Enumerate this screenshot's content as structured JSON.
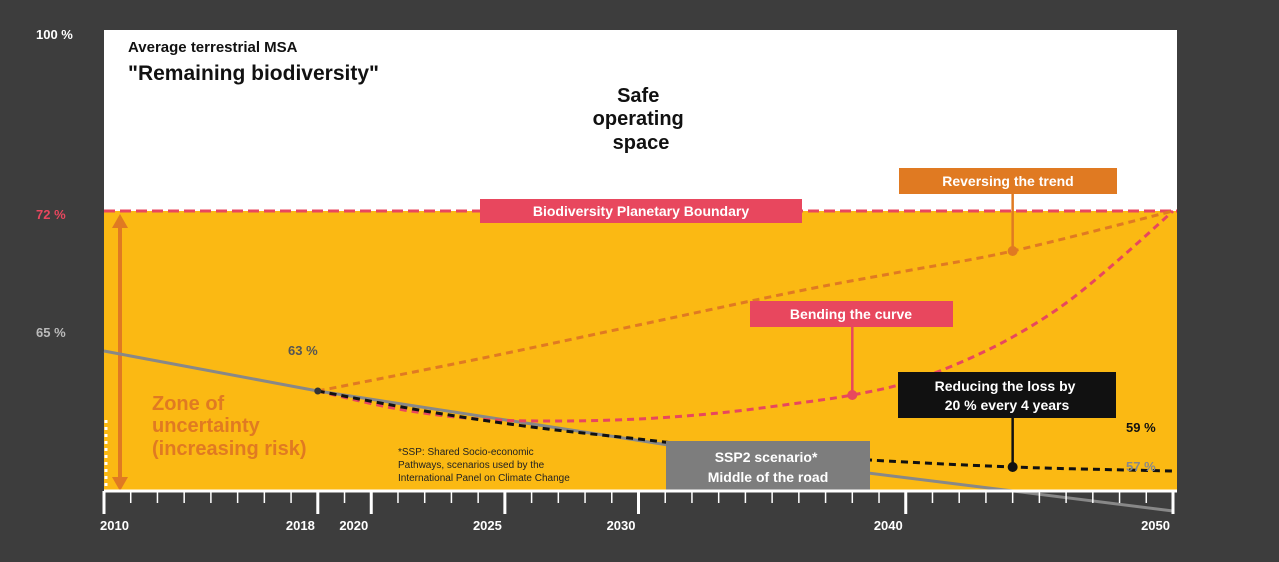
{
  "chart_data": {
    "type": "line",
    "title": "Average terrestrial MSA",
    "subtitle": "\"Remaining biodiversity\"",
    "xlim": [
      2010,
      2050
    ],
    "ylim": [
      58,
      100
    ],
    "x_ticks": [
      2010,
      2018,
      2020,
      2025,
      2030,
      2040,
      2050
    ],
    "y_labels": [
      {
        "value": 100,
        "label": "100 %"
      },
      {
        "value": 72,
        "label": "72 %"
      },
      {
        "value": 65,
        "label": "65 %"
      }
    ],
    "safe_space_label": [
      "Safe",
      "operating",
      "space"
    ],
    "boundary": {
      "value": 72,
      "label": "Biodiversity Planetary Boundary"
    },
    "uncertainty_zone": {
      "label": [
        "Zone of",
        "uncertainty",
        "(increasing risk)"
      ]
    },
    "footnote": [
      "*SSP: Shared Socio-economic",
      "Pathways, scenarios used by the",
      "International Panel on Climate Change"
    ],
    "series": [
      {
        "name": "SSP2 scenario* Middle of the road",
        "label_lines": [
          "SSP2 scenario*",
          "Middle of the road"
        ],
        "color": "#888888",
        "style": "solid",
        "points": [
          [
            2010,
            65
          ],
          [
            2018,
            63
          ],
          [
            2035,
            59.5
          ],
          [
            2050,
            57
          ]
        ],
        "marker_at": 2035,
        "end_label": "57 %"
      },
      {
        "name": "Reversing the trend",
        "label_lines": [
          "Reversing the trend"
        ],
        "color": "#e07a22",
        "style": "dashed",
        "points": [
          [
            2018,
            63
          ],
          [
            2024,
            64.6
          ],
          [
            2030,
            66.3
          ],
          [
            2036,
            68.0
          ],
          [
            2040,
            69.0
          ],
          [
            2044,
            70.0
          ],
          [
            2050,
            72
          ]
        ],
        "marker_at": 2044
      },
      {
        "name": "Bending the curve",
        "label_lines": [
          "Bending the curve"
        ],
        "color": "#e8475e",
        "style": "dashed",
        "points": [
          [
            2018,
            63
          ],
          [
            2021,
            62.1
          ],
          [
            2024,
            61.6
          ],
          [
            2027,
            61.5
          ],
          [
            2030,
            61.6
          ],
          [
            2033,
            61.9
          ],
          [
            2036,
            62.4
          ],
          [
            2038,
            62.8
          ],
          [
            2040,
            63.4
          ],
          [
            2042,
            64.4
          ],
          [
            2044,
            65.7
          ],
          [
            2046,
            67.4
          ],
          [
            2048,
            69.6
          ],
          [
            2050,
            72
          ]
        ],
        "marker_at": 2038
      },
      {
        "name": "Reducing the loss by 20 % every 4 years",
        "label_lines": [
          "Reducing the loss by",
          "20 % every 4 years"
        ],
        "color": "#111111",
        "style": "dashed",
        "points": [
          [
            2018,
            63
          ],
          [
            2022,
            62.0
          ],
          [
            2026,
            61.2
          ],
          [
            2030,
            60.6
          ],
          [
            2034,
            60.0
          ],
          [
            2038,
            59.6
          ],
          [
            2044,
            59.2
          ],
          [
            2050,
            59
          ]
        ],
        "marker_at": 2044,
        "start_label": "63 %",
        "end_label": "59 %"
      }
    ]
  },
  "colors": {
    "background": "#3d3d3d",
    "safe_space": "#ffffff",
    "uncertainty": "#fbb913",
    "boundary": "#e8475e",
    "uncertainty_text": "#e07a22",
    "axis": "#ffffff"
  }
}
